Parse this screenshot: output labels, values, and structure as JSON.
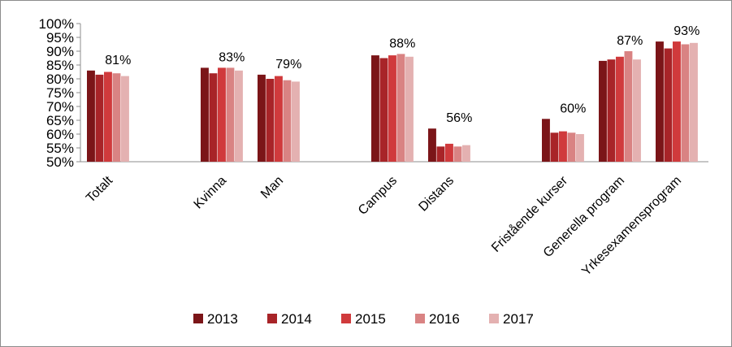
{
  "chart_data": {
    "type": "bar",
    "categories": [
      "Totalt",
      "Kvinna",
      "Man",
      "Campus",
      "Distans",
      "Fristående kurser",
      "Generella program",
      "Yrkesexamensprogram"
    ],
    "series": [
      {
        "name": "2013",
        "color": "#7b1518",
        "values": [
          83,
          84,
          81.5,
          88.5,
          62,
          65.5,
          86.5,
          93.5
        ]
      },
      {
        "name": "2014",
        "color": "#a82428",
        "values": [
          81.5,
          82,
          80,
          87.5,
          55.5,
          60.5,
          87,
          91
        ]
      },
      {
        "name": "2015",
        "color": "#d03a3c",
        "values": [
          82.5,
          84,
          81,
          88.5,
          56.5,
          61,
          88,
          93.5
        ]
      },
      {
        "name": "2016",
        "color": "#d98383",
        "values": [
          82,
          84,
          79.5,
          89,
          55.5,
          60.5,
          90,
          92.5
        ]
      },
      {
        "name": "2017",
        "color": "#e4b1b1",
        "values": [
          81,
          83,
          79,
          88,
          56,
          60,
          87,
          93
        ]
      }
    ],
    "data_labels": [
      "81%",
      "83%",
      "79%",
      "88%",
      "56%",
      "60%",
      "87%",
      "93%"
    ],
    "yticks": [
      "100%",
      "95%",
      "90%",
      "85%",
      "80%",
      "75%",
      "70%",
      "65%",
      "60%",
      "55%",
      "50%"
    ],
    "ylim": [
      50,
      100
    ],
    "grid": false,
    "legend_position": "bottom"
  }
}
